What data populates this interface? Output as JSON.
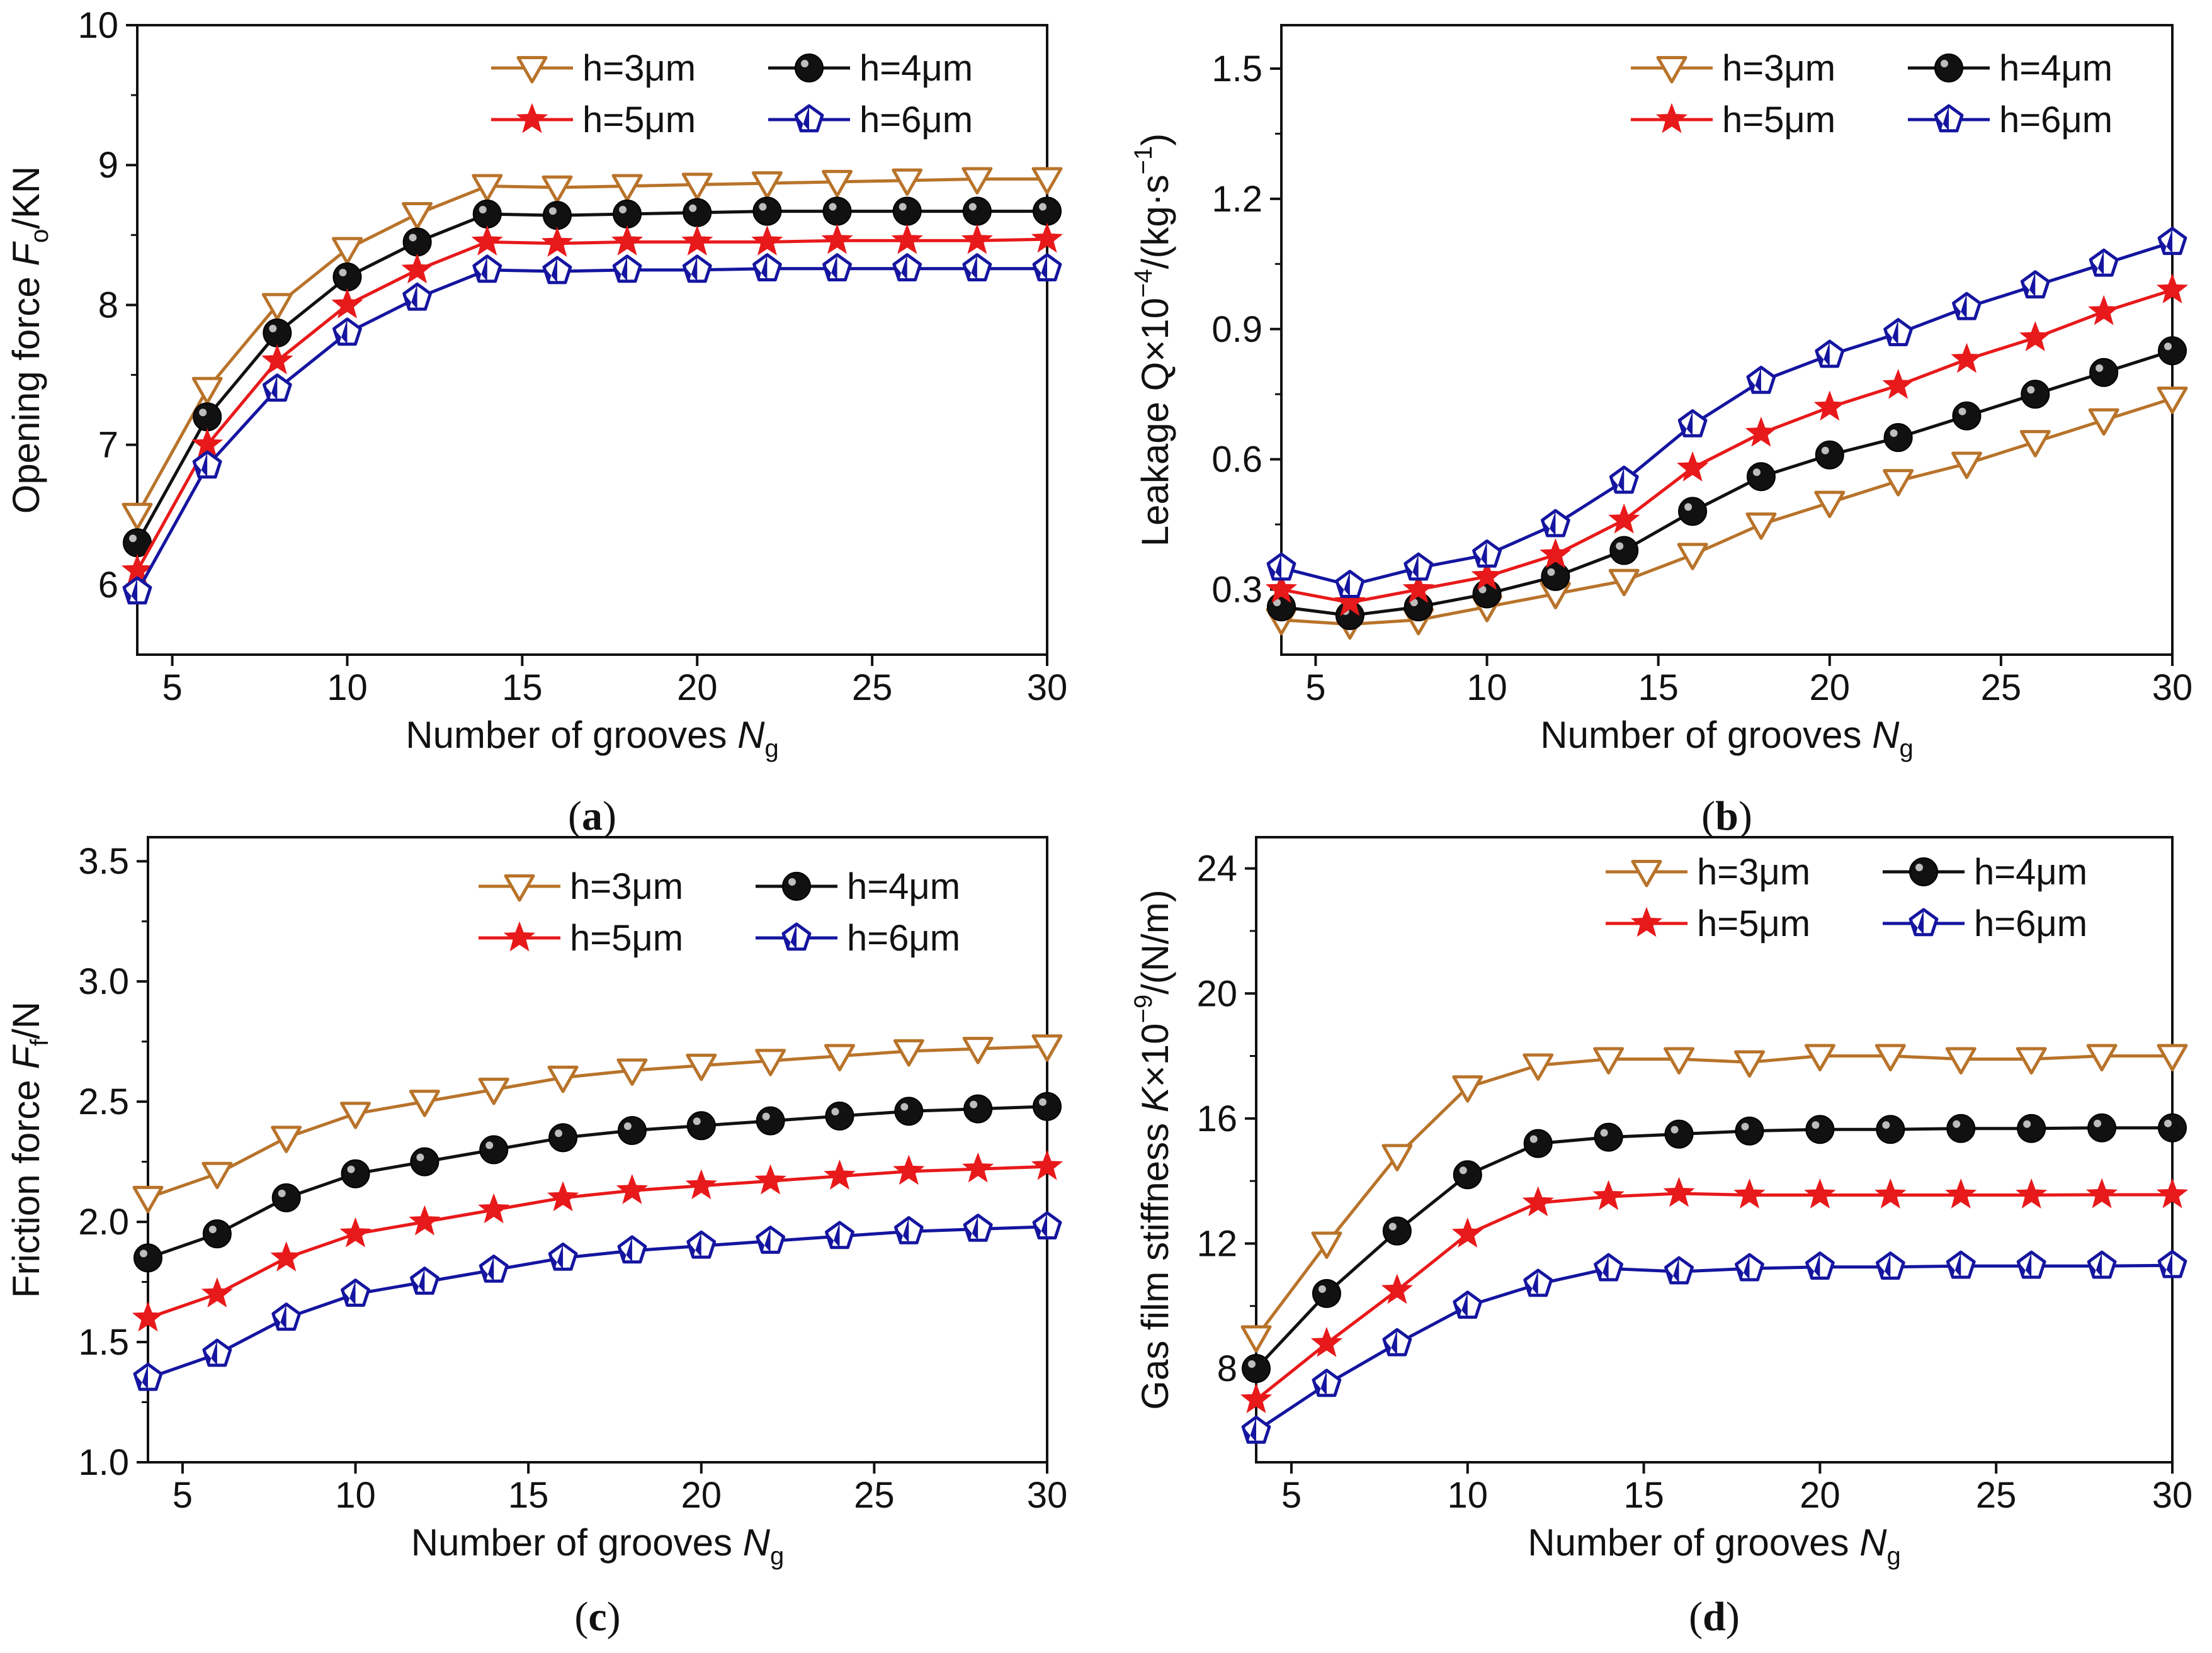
{
  "chart_data": [
    {
      "type": "line",
      "panel": "(a)",
      "panel_letter": "a",
      "ylabel": {
        "main": "Opening force ",
        "var": "F",
        "sub": "o",
        "tail": "/KN"
      },
      "xlabel": {
        "main": "Number of grooves ",
        "var": "N",
        "sub": "g"
      },
      "xlim": [
        4,
        30
      ],
      "ylim": [
        5.5,
        10
      ],
      "xticks": [
        5,
        10,
        15,
        20,
        25,
        30
      ],
      "yticks": [
        6,
        7,
        8,
        9,
        10
      ],
      "ytick_labels": [
        "6",
        "7",
        "8",
        "9",
        "10"
      ],
      "x": [
        4,
        6,
        8,
        10,
        12,
        14,
        16,
        18,
        20,
        22,
        24,
        26,
        28,
        30
      ],
      "series": [
        {
          "name": "h=3μm",
          "color": "#B8732A",
          "marker": "tri-down",
          "values": [
            6.5,
            7.4,
            8.0,
            8.4,
            8.65,
            8.85,
            8.84,
            8.85,
            8.86,
            8.87,
            8.88,
            8.89,
            8.9,
            8.9
          ]
        },
        {
          "name": "h=4μm",
          "color": "#111111",
          "marker": "ball",
          "values": [
            6.3,
            7.2,
            7.8,
            8.2,
            8.45,
            8.65,
            8.64,
            8.65,
            8.66,
            8.67,
            8.67,
            8.67,
            8.67,
            8.67
          ]
        },
        {
          "name": "h=5μm",
          "color": "#E8191A",
          "marker": "star",
          "values": [
            6.1,
            7.0,
            7.6,
            8.0,
            8.25,
            8.45,
            8.44,
            8.45,
            8.45,
            8.45,
            8.46,
            8.46,
            8.46,
            8.47
          ]
        },
        {
          "name": "h=6μm",
          "color": "#1515A0",
          "marker": "pent",
          "values": [
            5.95,
            6.85,
            7.4,
            7.8,
            8.05,
            8.25,
            8.24,
            8.25,
            8.25,
            8.26,
            8.26,
            8.26,
            8.26,
            8.26
          ]
        }
      ]
    },
    {
      "type": "line",
      "panel": "(b)",
      "panel_letter": "b",
      "ylabel": {
        "main": "Leakage Q×10",
        "sup": "−4",
        "tail": "/(kg·s",
        "sup2": "−1",
        "tail2": ")"
      },
      "xlabel": {
        "main": "Number of grooves ",
        "var": "N",
        "sub": "g"
      },
      "xlim": [
        4,
        30
      ],
      "ylim": [
        0.15,
        1.6
      ],
      "xticks": [
        5,
        10,
        15,
        20,
        25,
        30
      ],
      "yticks": [
        0.3,
        0.6,
        0.9,
        1.2,
        1.5
      ],
      "ytick_labels": [
        "0.3",
        "0.6",
        "0.9",
        "1.2",
        "1.5"
      ],
      "x": [
        4,
        6,
        8,
        10,
        12,
        14,
        16,
        18,
        20,
        22,
        24,
        26,
        28,
        30
      ],
      "series": [
        {
          "name": "h=3μm",
          "color": "#B8732A",
          "marker": "tri-down",
          "values": [
            0.23,
            0.22,
            0.23,
            0.26,
            0.29,
            0.32,
            0.38,
            0.45,
            0.5,
            0.55,
            0.59,
            0.64,
            0.69,
            0.74
          ]
        },
        {
          "name": "h=4μm",
          "color": "#111111",
          "marker": "ball",
          "values": [
            0.26,
            0.24,
            0.26,
            0.29,
            0.33,
            0.39,
            0.48,
            0.56,
            0.61,
            0.65,
            0.7,
            0.75,
            0.8,
            0.85
          ]
        },
        {
          "name": "h=5μm",
          "color": "#E8191A",
          "marker": "star",
          "values": [
            0.3,
            0.27,
            0.3,
            0.33,
            0.38,
            0.46,
            0.58,
            0.66,
            0.72,
            0.77,
            0.83,
            0.88,
            0.94,
            0.99
          ]
        },
        {
          "name": "h=6μm",
          "color": "#1515A0",
          "marker": "pent",
          "values": [
            0.35,
            0.31,
            0.35,
            0.38,
            0.45,
            0.55,
            0.68,
            0.78,
            0.84,
            0.89,
            0.95,
            1.0,
            1.05,
            1.1
          ]
        }
      ]
    },
    {
      "type": "line",
      "panel": "(c)",
      "panel_letter": "c",
      "ylabel": {
        "main": "Friction force ",
        "var": "F",
        "sub": "f",
        "tail": "/N"
      },
      "xlabel": {
        "main": "Number of  grooves ",
        "var": "N",
        "sub": "g"
      },
      "xlim": [
        4,
        30
      ],
      "ylim": [
        1.0,
        3.6
      ],
      "xticks": [
        5,
        10,
        15,
        20,
        25,
        30
      ],
      "yticks": [
        1.0,
        1.5,
        2.0,
        2.5,
        3.0,
        3.5
      ],
      "ytick_labels": [
        "1.0",
        "1.5",
        "2.0",
        "2.5",
        "3.0",
        "3.5"
      ],
      "x": [
        4,
        6,
        8,
        10,
        12,
        14,
        16,
        18,
        20,
        22,
        24,
        26,
        28,
        30
      ],
      "series": [
        {
          "name": "h=3μm",
          "color": "#B8732A",
          "marker": "tri-down",
          "values": [
            2.1,
            2.2,
            2.35,
            2.45,
            2.5,
            2.55,
            2.6,
            2.63,
            2.65,
            2.67,
            2.69,
            2.71,
            2.72,
            2.73
          ]
        },
        {
          "name": "h=4μm",
          "color": "#111111",
          "marker": "ball",
          "values": [
            1.85,
            1.95,
            2.1,
            2.2,
            2.25,
            2.3,
            2.35,
            2.38,
            2.4,
            2.42,
            2.44,
            2.46,
            2.47,
            2.48
          ]
        },
        {
          "name": "h=5μm",
          "color": "#E8191A",
          "marker": "star",
          "values": [
            1.6,
            1.7,
            1.85,
            1.95,
            2.0,
            2.05,
            2.1,
            2.13,
            2.15,
            2.17,
            2.19,
            2.21,
            2.22,
            2.23
          ]
        },
        {
          "name": "h=6μm",
          "color": "#1515A0",
          "marker": "pent",
          "values": [
            1.35,
            1.45,
            1.6,
            1.7,
            1.75,
            1.8,
            1.85,
            1.88,
            1.9,
            1.92,
            1.94,
            1.96,
            1.97,
            1.98
          ]
        }
      ]
    },
    {
      "type": "line",
      "panel": "(d)",
      "panel_letter": "d",
      "ylabel": {
        "main": "Gas film stiffness ",
        "var": "K",
        "tail": "×10",
        "sup": "−9",
        "tail2": "/(N/m)"
      },
      "xlabel": {
        "main": "Number of grooves ",
        "var": "N",
        "sub": "g"
      },
      "xlim": [
        4,
        30
      ],
      "ylim": [
        5,
        25
      ],
      "xticks": [
        5,
        10,
        15,
        20,
        25,
        30
      ],
      "yticks": [
        8,
        12,
        16,
        20,
        24
      ],
      "ytick_labels": [
        "8",
        "12",
        "16",
        "20",
        "24"
      ],
      "x": [
        4,
        6,
        8,
        10,
        12,
        14,
        16,
        18,
        20,
        22,
        24,
        26,
        28,
        30
      ],
      "series": [
        {
          "name": "h=3μm",
          "color": "#B8732A",
          "marker": "tri-down",
          "values": [
            9.0,
            12.0,
            14.8,
            17.0,
            17.7,
            17.9,
            17.9,
            17.8,
            18.0,
            18.0,
            17.9,
            17.9,
            18.0,
            18.0
          ]
        },
        {
          "name": "h=4μm",
          "color": "#111111",
          "marker": "ball",
          "values": [
            8.0,
            10.4,
            12.4,
            14.2,
            15.2,
            15.4,
            15.5,
            15.6,
            15.65,
            15.65,
            15.68,
            15.68,
            15.7,
            15.7
          ]
        },
        {
          "name": "h=5μm",
          "color": "#E8191A",
          "marker": "star",
          "values": [
            7.0,
            8.8,
            10.5,
            12.3,
            13.3,
            13.5,
            13.6,
            13.55,
            13.55,
            13.55,
            13.55,
            13.55,
            13.56,
            13.56
          ]
        },
        {
          "name": "h=6μm",
          "color": "#1515A0",
          "marker": "pent",
          "values": [
            6.0,
            7.5,
            8.8,
            10.0,
            10.7,
            11.2,
            11.1,
            11.2,
            11.25,
            11.25,
            11.28,
            11.28,
            11.28,
            11.3
          ]
        }
      ]
    }
  ]
}
